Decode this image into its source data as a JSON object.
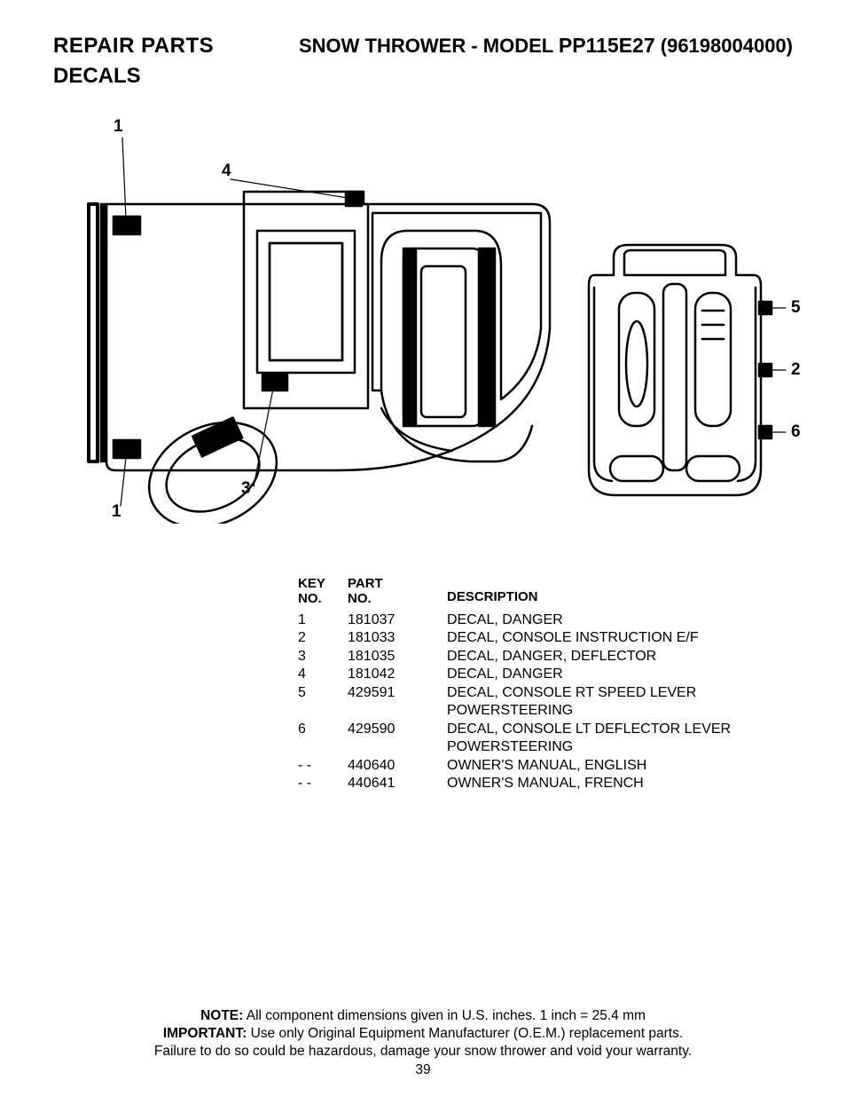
{
  "header": {
    "repair_parts": "REPAIR PARTS",
    "model_prefix": "SNOW THROWER - MODEL ",
    "model_id": "PP115E27",
    "model_suffix": "  (96198004000)",
    "section": "DECALS"
  },
  "callouts": {
    "c1a": "1",
    "c1b": "1",
    "c3": "3",
    "c4": "4",
    "c5": "5",
    "c2": "2",
    "c6": "6"
  },
  "table": {
    "head": {
      "key_l1": "KEY",
      "key_l2": "NO.",
      "part_l1": "PART",
      "part_l2": "NO.",
      "desc": "DESCRIPTION"
    },
    "rows": [
      {
        "key": "1",
        "part": "181037",
        "desc": "DECAL, DANGER"
      },
      {
        "key": "2",
        "part": "181033",
        "desc": "DECAL, CONSOLE INSTRUCTION E/F"
      },
      {
        "key": "3",
        "part": "181035",
        "desc": "DECAL, DANGER, DEFLECTOR"
      },
      {
        "key": "4",
        "part": "181042",
        "desc": "DECAL, DANGER"
      },
      {
        "key": "5",
        "part": "429591",
        "desc": "DECAL, CONSOLE RT SPEED LEVER",
        "desc2": "POWERSTEERING"
      },
      {
        "key": "6",
        "part": "429590",
        "desc": "DECAL, CONSOLE LT DEFLECTOR LEVER",
        "desc2": "POWERSTEERING"
      },
      {
        "key": "- -",
        "part": "440640",
        "desc": "OWNER'S MANUAL, ENGLISH"
      },
      {
        "key": "- -",
        "part": "440641",
        "desc": "OWNER'S MANUAL, FRENCH"
      }
    ]
  },
  "footer": {
    "note_label": "NOTE:",
    "note_text": "  All component dimensions given in U.S. inches.     1 inch = 25.4 mm",
    "imp_label": "IMPORTANT:",
    "imp_text": "  Use only Original Equipment Manufacturer (O.E.M.) replacement parts.",
    "warn_text": "Failure to do so could be hazardous, damage your snow thrower and void your warranty."
  },
  "page_number": "39",
  "diagram": {
    "stroke": "#000000",
    "stroke_width_main": 2.5,
    "stroke_width_heavy": 4,
    "fill_solid": "#000000",
    "fill_none": "none"
  }
}
